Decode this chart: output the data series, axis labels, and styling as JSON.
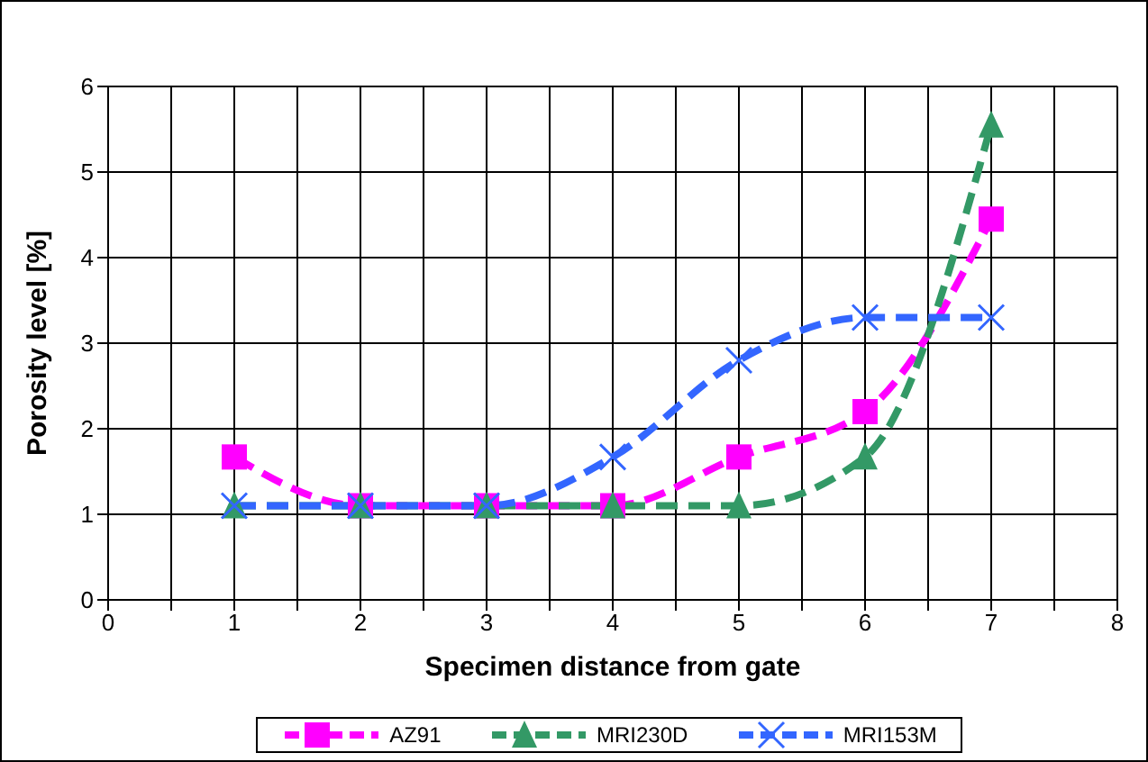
{
  "chart_data": {
    "type": "line",
    "xlabel": "Specimen distance from gate",
    "ylabel": "Porosity level [%]",
    "x": [
      1,
      2,
      3,
      4,
      5,
      6,
      7
    ],
    "series": [
      {
        "name": "AZ91",
        "color": "#ff00ff",
        "marker": "square",
        "values": [
          1.67,
          1.1,
          1.1,
          1.1,
          1.67,
          2.2,
          4.45
        ]
      },
      {
        "name": "MRI230D",
        "color": "#339966",
        "marker": "triangle",
        "values": [
          1.1,
          1.1,
          1.1,
          1.1,
          1.1,
          1.67,
          5.55
        ]
      },
      {
        "name": "MRI153M",
        "color": "#3366ff",
        "marker": "cross",
        "values": [
          1.1,
          1.1,
          1.1,
          1.67,
          2.8,
          3.3,
          3.3
        ]
      }
    ],
    "xlim": [
      0,
      8
    ],
    "xticks": [
      0,
      {
        "value": 0.5,
        "label": null
      },
      1,
      {
        "value": 1.5,
        "label": null
      },
      2,
      {
        "value": 2.5,
        "label": null
      },
      3,
      {
        "value": 3.5,
        "label": null
      },
      4,
      {
        "value": 4.5,
        "label": null
      },
      5,
      {
        "value": 5.5,
        "label": null
      },
      6,
      {
        "value": 6.5,
        "label": null
      },
      7,
      {
        "value": 7.5,
        "label": null
      },
      8
    ],
    "ylim": [
      0,
      6
    ],
    "yticks": [
      0,
      1,
      2,
      3,
      4,
      5,
      6
    ],
    "grid": true,
    "legend": "bottom",
    "line_style": "dashed"
  }
}
